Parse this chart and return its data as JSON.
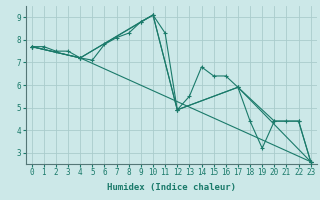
{
  "xlabel": "Humidex (Indice chaleur)",
  "bg_color": "#cce8e8",
  "grid_color": "#aacccc",
  "line_color": "#1a7a6a",
  "lines": [
    {
      "x": [
        0,
        1,
        2,
        3,
        4,
        5,
        6,
        7,
        8,
        9,
        10,
        11,
        12,
        13,
        14,
        15,
        16,
        17,
        18,
        19,
        20,
        21,
        22,
        23
      ],
      "y": [
        7.7,
        7.7,
        7.5,
        7.5,
        7.2,
        7.1,
        7.8,
        8.1,
        8.3,
        8.8,
        9.1,
        8.3,
        4.9,
        5.5,
        6.8,
        6.4,
        6.4,
        5.9,
        4.4,
        3.2,
        4.4,
        4.4,
        4.4,
        2.6
      ]
    },
    {
      "x": [
        0,
        4,
        9,
        10,
        12,
        17,
        20,
        22,
        23
      ],
      "y": [
        7.7,
        7.2,
        8.8,
        9.1,
        4.9,
        5.9,
        4.4,
        4.4,
        2.6
      ]
    },
    {
      "x": [
        0,
        4,
        10,
        12,
        17,
        23
      ],
      "y": [
        7.7,
        7.2,
        9.1,
        4.9,
        5.9,
        2.6
      ]
    },
    {
      "x": [
        0,
        4,
        23
      ],
      "y": [
        7.7,
        7.2,
        2.6
      ]
    }
  ],
  "xlim": [
    -0.5,
    23.5
  ],
  "ylim": [
    2.5,
    9.5
  ],
  "xticks": [
    0,
    1,
    2,
    3,
    4,
    5,
    6,
    7,
    8,
    9,
    10,
    11,
    12,
    13,
    14,
    15,
    16,
    17,
    18,
    19,
    20,
    21,
    22,
    23
  ],
  "yticks": [
    3,
    4,
    5,
    6,
    7,
    8,
    9
  ],
  "marker": "+",
  "markersize": 3,
  "linewidth": 0.8,
  "xlabel_fontsize": 6.5,
  "tick_fontsize": 5.5
}
